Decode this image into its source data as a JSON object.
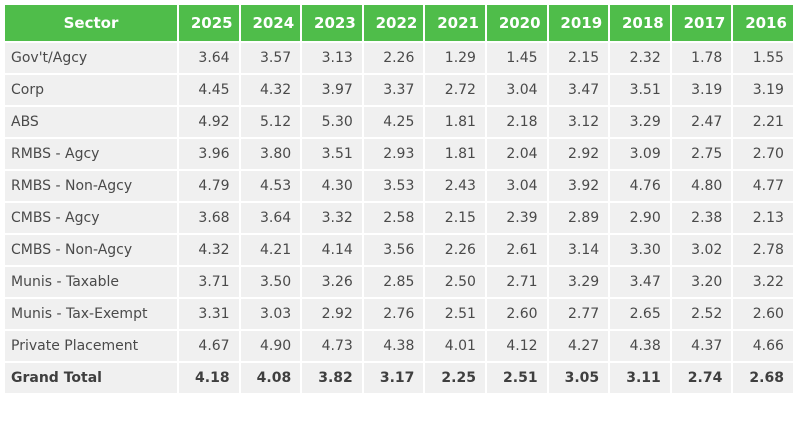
{
  "table": {
    "header": {
      "sector_label": "Sector",
      "years": [
        "2025",
        "2024",
        "2023",
        "2022",
        "2021",
        "2020",
        "2019",
        "2018",
        "2017",
        "2016"
      ]
    },
    "rows": [
      {
        "sector": "Gov't/Agcy",
        "values": [
          "3.64",
          "3.57",
          "3.13",
          "2.26",
          "1.29",
          "1.45",
          "2.15",
          "2.32",
          "1.78",
          "1.55"
        ]
      },
      {
        "sector": "Corp",
        "values": [
          "4.45",
          "4.32",
          "3.97",
          "3.37",
          "2.72",
          "3.04",
          "3.47",
          "3.51",
          "3.19",
          "3.19"
        ]
      },
      {
        "sector": "ABS",
        "values": [
          "4.92",
          "5.12",
          "5.30",
          "4.25",
          "1.81",
          "2.18",
          "3.12",
          "3.29",
          "2.47",
          "2.21"
        ]
      },
      {
        "sector": "RMBS - Agcy",
        "values": [
          "3.96",
          "3.80",
          "3.51",
          "2.93",
          "1.81",
          "2.04",
          "2.92",
          "3.09",
          "2.75",
          "2.70"
        ]
      },
      {
        "sector": "RMBS - Non-Agcy",
        "values": [
          "4.79",
          "4.53",
          "4.30",
          "3.53",
          "2.43",
          "3.04",
          "3.92",
          "4.76",
          "4.80",
          "4.77"
        ]
      },
      {
        "sector": "CMBS - Agcy",
        "values": [
          "3.68",
          "3.64",
          "3.32",
          "2.58",
          "2.15",
          "2.39",
          "2.89",
          "2.90",
          "2.38",
          "2.13"
        ]
      },
      {
        "sector": "CMBS - Non-Agcy",
        "values": [
          "4.32",
          "4.21",
          "4.14",
          "3.56",
          "2.26",
          "2.61",
          "3.14",
          "3.30",
          "3.02",
          "2.78"
        ]
      },
      {
        "sector": "Munis - Taxable",
        "values": [
          "3.71",
          "3.50",
          "3.26",
          "2.85",
          "2.50",
          "2.71",
          "3.29",
          "3.47",
          "3.20",
          "3.22"
        ]
      },
      {
        "sector": "Munis - Tax-Exempt",
        "values": [
          "3.31",
          "3.03",
          "2.92",
          "2.76",
          "2.51",
          "2.60",
          "2.77",
          "2.65",
          "2.52",
          "2.60"
        ]
      },
      {
        "sector": "Private Placement",
        "values": [
          "4.67",
          "4.90",
          "4.73",
          "4.38",
          "4.01",
          "4.12",
          "4.27",
          "4.38",
          "4.37",
          "4.66"
        ]
      },
      {
        "sector": "Grand Total",
        "values": [
          "4.18",
          "4.08",
          "3.82",
          "3.17",
          "2.25",
          "2.51",
          "3.05",
          "3.11",
          "2.74",
          "2.68"
        ],
        "total": true
      }
    ]
  },
  "colors": {
    "header_bg": "#4fbd4a",
    "header_text": "#ffffff",
    "cell_bg": "#f0f0f0",
    "cell_text": "#4a4a4a"
  }
}
